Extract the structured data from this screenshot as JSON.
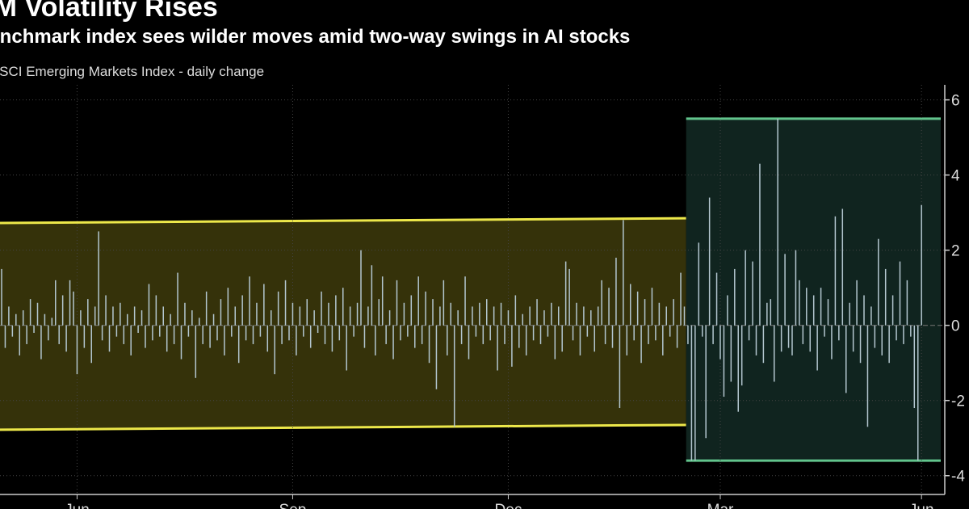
{
  "chart_data": {
    "type": "bar",
    "title": "EM Volatility Rises",
    "subtitle": "Benchmark index sees wilder moves amid two-way swings in AI stocks",
    "y_label": "MSCI Emerging Markets Index - daily change",
    "color": "#b3c6cf",
    "ylim": [
      -4.5,
      6.4
    ],
    "yticks": [
      -4,
      -2,
      0,
      2,
      4,
      6
    ],
    "grid": true,
    "categories": [
      null,
      null,
      null,
      null,
      null,
      null,
      null,
      null,
      null,
      null,
      null,
      null,
      null,
      null,
      null,
      null,
      null,
      null,
      null,
      null,
      null,
      "Jun",
      null,
      null,
      null,
      null,
      null,
      null,
      null,
      null,
      null,
      null,
      null,
      null,
      null,
      null,
      null,
      null,
      null,
      null,
      null,
      null,
      null,
      null,
      null,
      null,
      null,
      null,
      null,
      null,
      null,
      null,
      null,
      null,
      null,
      null,
      null,
      null,
      null,
      null,
      null,
      null,
      null,
      null,
      null,
      null,
      null,
      null,
      null,
      null,
      null,
      null,
      null,
      null,
      null,
      null,
      null,
      null,
      null,
      null,
      null,
      "Sep",
      null,
      null,
      null,
      null,
      null,
      null,
      null,
      null,
      null,
      null,
      null,
      null,
      null,
      null,
      null,
      null,
      null,
      null,
      null,
      null,
      null,
      null,
      null,
      null,
      null,
      null,
      null,
      null,
      null,
      null,
      null,
      null,
      null,
      null,
      null,
      null,
      null,
      null,
      null,
      null,
      null,
      null,
      null,
      null,
      null,
      null,
      null,
      null,
      null,
      null,
      null,
      null,
      null,
      null,
      null,
      null,
      null,
      null,
      null,
      "Dec",
      null,
      null,
      null,
      null,
      null,
      null,
      null,
      null,
      null,
      null,
      null,
      null,
      null,
      null,
      null,
      null,
      null,
      null,
      null,
      null,
      null,
      null,
      null,
      null,
      null,
      null,
      null,
      null,
      null,
      null,
      null,
      null,
      null,
      null,
      null,
      null,
      null,
      null,
      null,
      null,
      null,
      null,
      null,
      null,
      null,
      null,
      null,
      null,
      null,
      null,
      null,
      null,
      null,
      null,
      null,
      null,
      null,
      null,
      "Mar",
      null,
      null,
      null,
      null,
      null,
      null,
      null,
      null,
      null,
      null,
      null,
      null,
      null,
      null,
      null,
      null,
      null,
      null,
      null,
      null,
      null,
      null,
      null,
      null,
      null,
      null,
      null,
      null,
      null,
      null,
      null,
      null,
      null,
      null,
      null,
      null,
      null,
      null,
      null,
      null,
      null,
      null,
      null,
      null,
      null,
      null,
      null,
      null,
      null,
      null,
      null,
      null,
      null,
      null,
      null,
      "Jun"
    ],
    "values": [
      1.5,
      -0.6,
      0.5,
      -0.3,
      0.3,
      -0.8,
      0.4,
      -0.5,
      0.7,
      -0.2,
      0.6,
      -0.9,
      0.3,
      -0.4,
      0.2,
      1.2,
      -0.5,
      0.8,
      -0.7,
      1.2,
      0.9,
      -1.3,
      0.4,
      -0.6,
      0.7,
      -1.0,
      0.5,
      2.5,
      -0.4,
      0.8,
      -0.7,
      0.5,
      -0.3,
      0.6,
      -0.5,
      0.3,
      -0.8,
      0.5,
      -0.2,
      0.4,
      -0.6,
      1.1,
      -0.4,
      0.8,
      -0.3,
      0.5,
      -0.7,
      0.3,
      -0.5,
      1.4,
      -0.9,
      0.6,
      -0.3,
      0.4,
      -1.4,
      0.2,
      -0.5,
      0.9,
      -0.6,
      0.3,
      -0.4,
      0.7,
      -0.8,
      1.0,
      -0.3,
      0.5,
      -1.0,
      0.8,
      -0.4,
      1.3,
      -0.5,
      0.6,
      -0.3,
      1.1,
      -0.7,
      0.4,
      -1.3,
      0.9,
      -0.5,
      1.2,
      -0.4,
      0.6,
      -0.8,
      0.5,
      -0.3,
      0.7,
      -0.6,
      0.4,
      -0.2,
      0.9,
      -0.5,
      0.6,
      -0.7,
      0.8,
      -0.4,
      1.0,
      -1.2,
      0.5,
      -0.3,
      0.6,
      2.0,
      -0.6,
      0.5,
      1.6,
      -0.8,
      0.7,
      1.3,
      -0.5,
      0.4,
      -0.9,
      1.2,
      -0.4,
      0.6,
      -0.3,
      0.8,
      -0.6,
      1.3,
      -0.5,
      0.9,
      -1.0,
      0.7,
      -1.7,
      0.5,
      1.2,
      -0.8,
      0.6,
      -2.7,
      0.4,
      -0.5,
      1.3,
      -0.9,
      0.5,
      -0.3,
      0.6,
      -0.5,
      0.7,
      -0.4,
      0.5,
      -1.2,
      0.6,
      -0.5,
      0.4,
      -1.1,
      0.8,
      -0.6,
      0.3,
      -0.8,
      0.5,
      -0.4,
      0.7,
      -0.5,
      0.4,
      -0.3,
      0.6,
      -0.9,
      0.5,
      -0.7,
      1.7,
      1.5,
      -0.4,
      0.6,
      -0.8,
      0.5,
      -0.3,
      0.4,
      -0.7,
      0.5,
      1.2,
      -0.5,
      1.0,
      -0.6,
      1.8,
      -2.2,
      2.8,
      -0.8,
      1.1,
      -0.4,
      0.9,
      -1.0,
      0.7,
      -0.5,
      1.0,
      -0.4,
      0.6,
      -0.8,
      0.5,
      -0.3,
      0.7,
      -0.6,
      1.4,
      0.5,
      -0.5,
      -3.6,
      -3.6,
      2.2,
      -0.3,
      -3.0,
      3.4,
      -0.5,
      1.4,
      -0.9,
      -1.9,
      0.8,
      -1.5,
      1.5,
      -2.3,
      -1.6,
      2.0,
      -0.4,
      1.7,
      -0.8,
      4.3,
      -1.0,
      0.6,
      0.7,
      -1.5,
      5.5,
      -0.7,
      1.9,
      -0.6,
      -0.8,
      2.0,
      1.2,
      -0.5,
      1.0,
      -0.7,
      0.8,
      -1.2,
      1.0,
      -0.3,
      0.7,
      -0.9,
      2.9,
      -0.4,
      3.1,
      -1.8,
      0.6,
      -0.7,
      1.2,
      -1.0,
      0.8,
      -2.7,
      0.5,
      -0.6,
      2.3,
      -0.8,
      1.5,
      -1.0,
      0.8,
      -0.4,
      1.7,
      -0.5,
      1.2,
      -0.3,
      -2.2,
      -3.6,
      3.2
    ],
    "bands": [
      {
        "from": 0,
        "to": 190,
        "upper": [
          2.72,
          2.85
        ],
        "lower": [
          -2.78,
          -2.65
        ],
        "fill": "#35320a",
        "line": "#ede84a"
      },
      {
        "from": 191,
        "to": 256,
        "upper": [
          5.5,
          5.5
        ],
        "lower": [
          -3.6,
          -3.6
        ],
        "fill": "#10241f",
        "line": "#62c48c"
      }
    ]
  }
}
